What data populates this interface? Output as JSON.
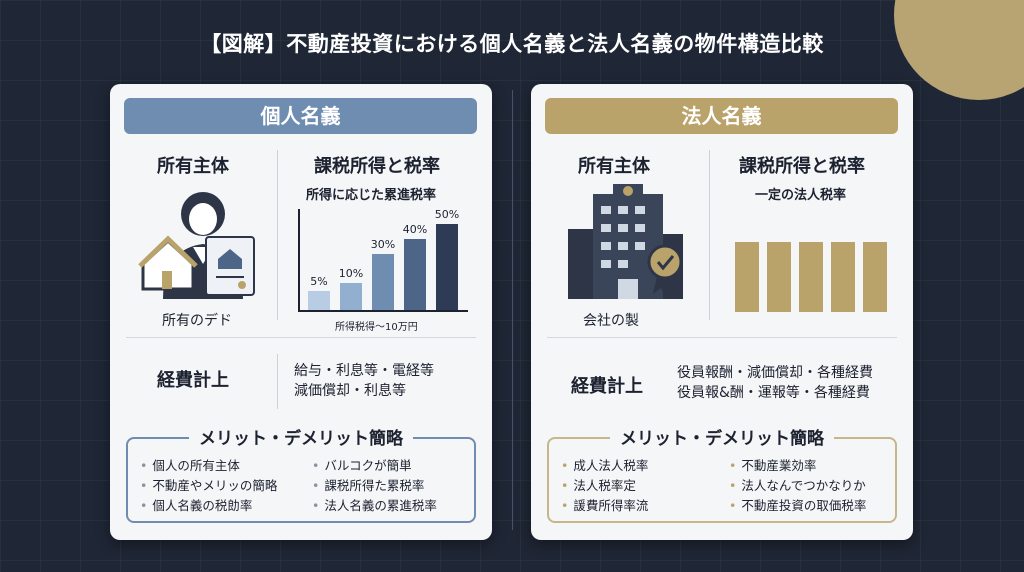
{
  "title": "【図解】不動産投資における個人名義と法人名義の物件構造比較",
  "colors": {
    "background": "#1f2635",
    "individual": "#6f8db0",
    "corporate": "#b9a36b"
  },
  "individual": {
    "header": "個人名義",
    "owner_heading": "所有主体",
    "owner_caption": "所有のデド",
    "owner_icon": "person-holding-house-deed-icon",
    "tax_heading": "課税所得と税率",
    "tax_subheading": "所得に応じた累進税率",
    "chart_xlabel": "所得税得〜10万円",
    "expense_heading": "経費計上",
    "expense_lines": [
      "給与・利息等・電経等",
      "減価償却・利息等"
    ],
    "summary_title": "メリット・デメリット簡略",
    "summary_left": [
      "個人の所有主体",
      "不動産やメリッの簡略",
      "個人名義の税勆率"
    ],
    "summary_right": [
      "バルコクが簡単",
      "課税所得た累税率",
      "法人名義の累進税率"
    ]
  },
  "corporate": {
    "header": "法人名義",
    "owner_heading": "所有主体",
    "owner_caption": "会社の製",
    "owner_icon": "office-building-with-badge-icon",
    "tax_heading": "課税所得と税率",
    "tax_subheading": "一定の法人税率",
    "expense_heading": "経費計上",
    "expense_lines": [
      "役員報酬・減価償却・各種経費",
      "役員報&酬・運報等・各種経費"
    ],
    "summary_title": "メリット・デメリット簡略",
    "summary_left": [
      "成人法人税率",
      "法人税率定",
      "諼費所得率流"
    ],
    "summary_right": [
      "不動産業効率",
      "法人なんでつかなりか",
      "不動産投資の取価税率"
    ]
  },
  "chart_data": [
    {
      "type": "bar",
      "title": "所得に応じた累進税率",
      "xlabel": "所得税得〜10万円",
      "categories": [
        "1",
        "2",
        "3",
        "4",
        "5"
      ],
      "values": [
        5,
        10,
        30,
        40,
        50
      ],
      "labels": [
        "5%",
        "10%",
        "30%",
        "40%",
        "50%"
      ],
      "colors": [
        "#b8cde4",
        "#93afd0",
        "#6f8db0",
        "#4d6587",
        "#2d3b57"
      ]
    },
    {
      "type": "bar",
      "title": "一定の法人税率",
      "categories": [
        "1",
        "2",
        "3",
        "4",
        "5"
      ],
      "values": [
        1,
        1,
        1,
        1,
        1
      ],
      "colors": [
        "#b9a36b"
      ]
    }
  ]
}
